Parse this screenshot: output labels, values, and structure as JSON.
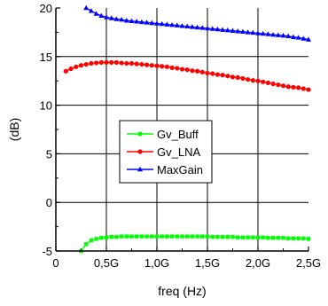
{
  "chart_data": {
    "type": "line",
    "title": "",
    "xlabel": "freq (Hz)",
    "ylabel": "(dB)",
    "xlim": [
      0,
      2.5
    ],
    "ylim": [
      -5,
      20
    ],
    "grid": true,
    "legend_position": "center",
    "x_ticks": [
      {
        "value": 0,
        "label": "0"
      },
      {
        "value": 0.5,
        "label": "0,5G"
      },
      {
        "value": 1.0,
        "label": "1,0G"
      },
      {
        "value": 1.5,
        "label": "1,5G"
      },
      {
        "value": 2.0,
        "label": "2,0G"
      },
      {
        "value": 2.5,
        "label": "2,5G"
      }
    ],
    "y_ticks": [
      {
        "value": -5,
        "label": "-5"
      },
      {
        "value": 0,
        "label": "0"
      },
      {
        "value": 5,
        "label": "5"
      },
      {
        "value": 10,
        "label": "10"
      },
      {
        "value": 15,
        "label": "15"
      },
      {
        "value": 20,
        "label": "20"
      }
    ],
    "series": [
      {
        "name": "Gv_Buff",
        "color": "#00ff00",
        "marker": "square",
        "x": [
          0.25,
          0.3,
          0.35,
          0.4,
          0.45,
          0.5,
          0.55,
          0.6,
          0.65,
          0.7,
          0.75,
          0.8,
          0.85,
          0.9,
          0.95,
          1.0,
          1.05,
          1.1,
          1.15,
          1.2,
          1.25,
          1.3,
          1.35,
          1.4,
          1.45,
          1.5,
          1.55,
          1.6,
          1.65,
          1.7,
          1.75,
          1.8,
          1.85,
          1.9,
          1.95,
          2.0,
          2.05,
          2.1,
          2.15,
          2.2,
          2.25,
          2.3,
          2.35,
          2.4,
          2.45,
          2.5
        ],
        "values": [
          -5.0,
          -4.3,
          -3.9,
          -3.75,
          -3.65,
          -3.6,
          -3.55,
          -3.55,
          -3.5,
          -3.5,
          -3.5,
          -3.5,
          -3.5,
          -3.5,
          -3.5,
          -3.5,
          -3.5,
          -3.5,
          -3.5,
          -3.5,
          -3.5,
          -3.5,
          -3.5,
          -3.5,
          -3.5,
          -3.5,
          -3.55,
          -3.55,
          -3.55,
          -3.55,
          -3.55,
          -3.6,
          -3.6,
          -3.6,
          -3.6,
          -3.6,
          -3.6,
          -3.65,
          -3.65,
          -3.65,
          -3.65,
          -3.7,
          -3.7,
          -3.7,
          -3.7,
          -3.75
        ]
      },
      {
        "name": "Gv_LNA",
        "color": "#ff0000",
        "marker": "circle",
        "x": [
          0.1,
          0.15,
          0.2,
          0.25,
          0.3,
          0.35,
          0.4,
          0.45,
          0.5,
          0.55,
          0.6,
          0.65,
          0.7,
          0.75,
          0.8,
          0.85,
          0.9,
          0.95,
          1.0,
          1.05,
          1.1,
          1.15,
          1.2,
          1.25,
          1.3,
          1.35,
          1.4,
          1.45,
          1.5,
          1.55,
          1.6,
          1.65,
          1.7,
          1.75,
          1.8,
          1.85,
          1.9,
          1.95,
          2.0,
          2.05,
          2.1,
          2.15,
          2.2,
          2.25,
          2.3,
          2.35,
          2.4,
          2.45,
          2.5
        ],
        "values": [
          13.5,
          13.75,
          13.95,
          14.1,
          14.2,
          14.3,
          14.35,
          14.4,
          14.4,
          14.4,
          14.4,
          14.35,
          14.3,
          14.3,
          14.25,
          14.2,
          14.15,
          14.1,
          14.05,
          14.0,
          13.95,
          13.85,
          13.8,
          13.7,
          13.65,
          13.55,
          13.5,
          13.4,
          13.3,
          13.25,
          13.15,
          13.1,
          13.0,
          12.9,
          12.85,
          12.75,
          12.65,
          12.55,
          12.5,
          12.4,
          12.3,
          12.2,
          12.1,
          12.0,
          11.9,
          11.85,
          11.8,
          11.7,
          11.6
        ]
      },
      {
        "name": "MaxGain",
        "color": "#0000ff",
        "marker": "triangle",
        "x": [
          0.3,
          0.35,
          0.4,
          0.45,
          0.5,
          0.55,
          0.6,
          0.65,
          0.7,
          0.75,
          0.8,
          0.85,
          0.9,
          0.95,
          1.0,
          1.05,
          1.1,
          1.15,
          1.2,
          1.25,
          1.3,
          1.35,
          1.4,
          1.45,
          1.5,
          1.55,
          1.6,
          1.65,
          1.7,
          1.75,
          1.8,
          1.85,
          1.9,
          1.95,
          2.0,
          2.05,
          2.1,
          2.15,
          2.2,
          2.25,
          2.3,
          2.35,
          2.4,
          2.45,
          2.5
        ],
        "values": [
          20.0,
          19.7,
          19.4,
          19.2,
          19.05,
          18.95,
          18.85,
          18.8,
          18.7,
          18.65,
          18.6,
          18.55,
          18.5,
          18.45,
          18.4,
          18.35,
          18.3,
          18.25,
          18.2,
          18.15,
          18.1,
          18.05,
          18.0,
          17.95,
          17.9,
          17.85,
          17.8,
          17.75,
          17.7,
          17.65,
          17.6,
          17.55,
          17.5,
          17.45,
          17.4,
          17.35,
          17.3,
          17.25,
          17.2,
          17.15,
          17.1,
          17.0,
          16.95,
          16.85,
          16.75
        ]
      }
    ]
  }
}
